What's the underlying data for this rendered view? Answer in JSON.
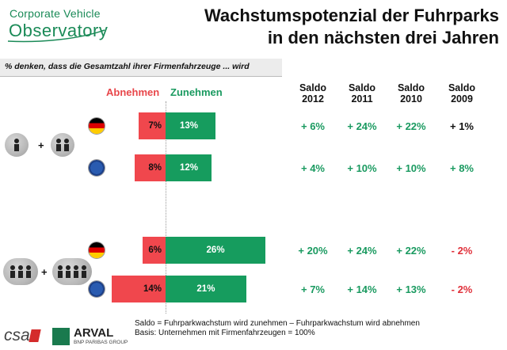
{
  "logo": {
    "line1": "Corporate Vehicle",
    "line2": "Observatory"
  },
  "title": {
    "line1": "Wachstumspotenzial der Fuhrparks",
    "line2": "in den nächsten drei Jahren"
  },
  "question": "% denken,  dass die Gesamtzahl ihrer Firmenfahrzeuge  ... wird",
  "headers": {
    "decrease": "Abnehmen",
    "increase": "Zunehmen",
    "saldo": [
      {
        "l1": "Saldo",
        "l2": "2012"
      },
      {
        "l1": "Saldo",
        "l2": "2011"
      },
      {
        "l1": "Saldo",
        "l2": "2010"
      },
      {
        "l1": "Saldo",
        "l2": "2009"
      }
    ]
  },
  "colors": {
    "decrease": "#f0474d",
    "increase": "#169c5e",
    "positive_text": "#1a9a60",
    "negative_text": "#e0303a"
  },
  "groups": [
    {
      "people_left": 1,
      "people_right": 2,
      "plus": "+"
    },
    {
      "people_left": 3,
      "people_right": 4,
      "plus": "+"
    }
  ],
  "chart_data": {
    "type": "bar",
    "categories": [
      "Deutschland",
      "Europa",
      "Deutschland",
      "Europa"
    ],
    "series": [
      {
        "name": "Abnehmen",
        "values": [
          7,
          8,
          6,
          14
        ],
        "labels": [
          "7%",
          "8%",
          "6%",
          "14%"
        ]
      },
      {
        "name": "Zunehmen",
        "values": [
          13,
          12,
          26,
          21
        ],
        "labels": [
          "13%",
          "12%",
          "26%",
          "21%"
        ]
      }
    ],
    "flags": [
      "de-flag",
      "eu-flag",
      "de-flag",
      "eu-flag"
    ],
    "saldo": {
      "years": [
        "2012",
        "2011",
        "2010",
        "2009"
      ],
      "rows": [
        [
          "+ 6%",
          "+ 24%",
          "+ 22%",
          "+ 1%"
        ],
        [
          "+ 4%",
          "+ 10%",
          "+ 10%",
          "+ 8%"
        ],
        [
          "+ 20%",
          "+ 24%",
          "+ 22%",
          "- 2%"
        ],
        [
          "+ 7%",
          "+ 14%",
          "+ 13%",
          "- 2%"
        ]
      ]
    }
  },
  "footnote": {
    "line1": "Saldo = Fuhrparkwachstum wird zunehmen – Fuhrparkwachstum wird abnehmen",
    "line2": "Basis: Unternehmen mit Firmenfahrzeugen = 100%"
  },
  "footer_logos": {
    "csa": "csa",
    "arval": "ARVAL",
    "arval_sub": "BNP PARIBAS GROUP"
  }
}
